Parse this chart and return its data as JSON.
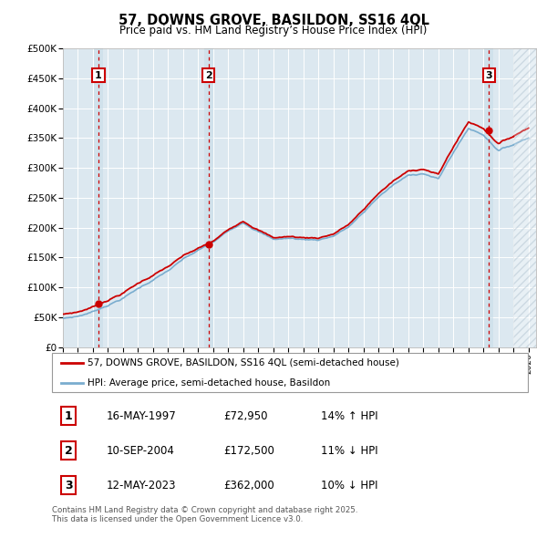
{
  "title_line1": "57, DOWNS GROVE, BASILDON, SS16 4QL",
  "title_line2": "Price paid vs. HM Land Registry’s House Price Index (HPI)",
  "ylim": [
    0,
    500000
  ],
  "yticks": [
    0,
    50000,
    100000,
    150000,
    200000,
    250000,
    300000,
    350000,
    400000,
    450000,
    500000
  ],
  "ytick_labels": [
    "£0",
    "£50K",
    "£100K",
    "£150K",
    "£200K",
    "£250K",
    "£300K",
    "£350K",
    "£400K",
    "£450K",
    "£500K"
  ],
  "xlim_start": 1995.0,
  "xlim_end": 2026.5,
  "hatch_start": 2025.0,
  "sale_dates": [
    1997.37,
    2004.69,
    2023.36
  ],
  "sale_prices": [
    72950,
    172500,
    362000
  ],
  "sale_labels": [
    "1",
    "2",
    "3"
  ],
  "red_color": "#cc0000",
  "blue_color": "#7aadcf",
  "plot_bg_color": "#dce8f0",
  "legend_label_red": "57, DOWNS GROVE, BASILDON, SS16 4QL (semi-detached house)",
  "legend_label_blue": "HPI: Average price, semi-detached house, Basildon",
  "table_rows": [
    [
      "1",
      "16-MAY-1997",
      "£72,950",
      "14% ↑ HPI"
    ],
    [
      "2",
      "10-SEP-2004",
      "£172,500",
      "11% ↓ HPI"
    ],
    [
      "3",
      "12-MAY-2023",
      "£362,000",
      "10% ↓ HPI"
    ]
  ],
  "footer_text": "Contains HM Land Registry data © Crown copyright and database right 2025.\nThis data is licensed under the Open Government Licence v3.0.",
  "hpi_anchors_x": [
    1995,
    1996,
    1997,
    1998,
    1999,
    2000,
    2001,
    2002,
    2003,
    2004,
    2005,
    2006,
    2007,
    2008,
    2009,
    2010,
    2011,
    2012,
    2013,
    2014,
    2015,
    2016,
    2017,
    2018,
    2019,
    2020,
    2021,
    2022,
    2023,
    2024,
    2025,
    2026
  ],
  "hpi_anchors_y": [
    48000,
    52000,
    60000,
    72000,
    84000,
    100000,
    115000,
    130000,
    148000,
    162000,
    175000,
    193000,
    210000,
    197000,
    183000,
    185000,
    183000,
    183000,
    190000,
    205000,
    228000,
    255000,
    275000,
    290000,
    295000,
    285000,
    330000,
    370000,
    360000,
    335000,
    345000,
    358000
  ],
  "prop_anchors_x": [
    1995,
    1997.37,
    2004.69,
    2023.36,
    2026
  ],
  "prop_anchors_y": [
    55000,
    72950,
    172500,
    362000,
    375000
  ]
}
